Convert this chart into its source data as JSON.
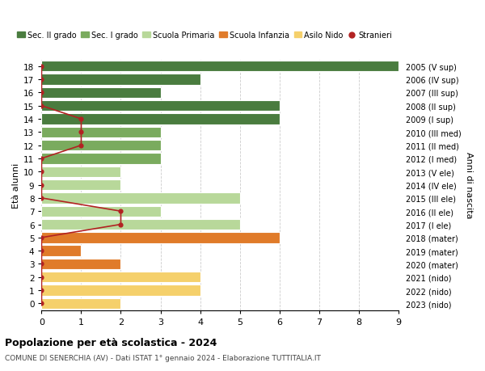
{
  "ages": [
    18,
    17,
    16,
    15,
    14,
    13,
    12,
    11,
    10,
    9,
    8,
    7,
    6,
    5,
    4,
    3,
    2,
    1,
    0
  ],
  "right_labels": [
    "2005 (V sup)",
    "2006 (IV sup)",
    "2007 (III sup)",
    "2008 (II sup)",
    "2009 (I sup)",
    "2010 (III med)",
    "2011 (II med)",
    "2012 (I med)",
    "2013 (V ele)",
    "2014 (IV ele)",
    "2015 (III ele)",
    "2016 (II ele)",
    "2017 (I ele)",
    "2018 (mater)",
    "2019 (mater)",
    "2020 (mater)",
    "2021 (nido)",
    "2022 (nido)",
    "2023 (nido)"
  ],
  "bar_values": [
    9,
    4,
    3,
    6,
    6,
    3,
    3,
    3,
    2,
    2,
    5,
    3,
    5,
    6,
    1,
    2,
    4,
    4,
    2
  ],
  "bar_colors": [
    "#4a7c3f",
    "#4a7c3f",
    "#4a7c3f",
    "#4a7c3f",
    "#4a7c3f",
    "#7aab5e",
    "#7aab5e",
    "#7aab5e",
    "#b8d89a",
    "#b8d89a",
    "#b8d89a",
    "#b8d89a",
    "#b8d89a",
    "#e07b2a",
    "#e07b2a",
    "#e07b2a",
    "#f5d06b",
    "#f5d06b",
    "#f5d06b"
  ],
  "stranieri_ages": [
    18,
    17,
    16,
    15,
    14,
    13,
    12,
    11,
    10,
    9,
    8,
    7,
    6,
    5,
    4,
    3,
    2,
    1,
    0
  ],
  "stranieri_values": [
    0,
    0,
    0,
    0,
    1,
    1,
    1,
    0,
    0,
    0,
    0,
    2,
    2,
    0,
    0,
    0,
    0,
    0,
    0
  ],
  "color_dark_green": "#4a7c3f",
  "color_med_green": "#7aab5e",
  "color_light_green": "#b8d89a",
  "color_orange": "#e07b2a",
  "color_yellow": "#f5d06b",
  "color_stranieri": "#b22222",
  "title": "Popolazione per età scolastica - 2024",
  "subtitle": "COMUNE DI SENERCHIA (AV) - Dati ISTAT 1° gennaio 2024 - Elaborazione TUTTITALIA.IT",
  "ylabel": "Età alunni",
  "right_ylabel": "Anni di nascita",
  "xlim": [
    0,
    9
  ],
  "legend_labels": [
    "Sec. II grado",
    "Sec. I grado",
    "Scuola Primaria",
    "Scuola Infanzia",
    "Asilo Nido",
    "Stranieri"
  ],
  "legend_colors": [
    "#4a7c3f",
    "#7aab5e",
    "#b8d89a",
    "#e07b2a",
    "#f5d06b",
    "#b22222"
  ]
}
